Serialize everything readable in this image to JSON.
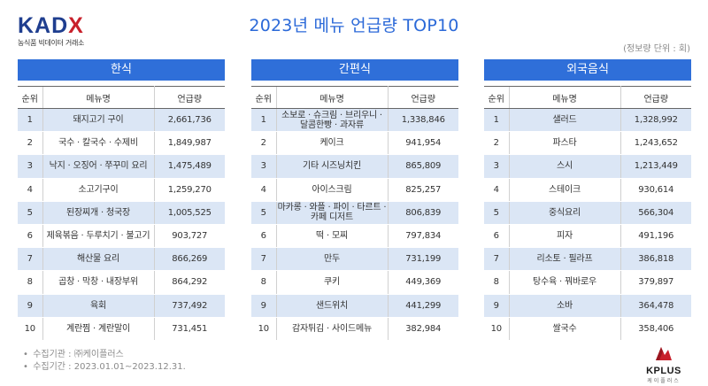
{
  "logo": {
    "brand_left": "KAD",
    "brand_x": "X",
    "subtitle": "농식품 빅데이터 거래소"
  },
  "title": "2023년 메뉴 언급량 TOP10",
  "unit_note": "(정보량 단위 : 회)",
  "columns": {
    "rank": "순위",
    "menu": "메뉴명",
    "count": "언급량"
  },
  "panels": [
    {
      "name": "한식",
      "rows": [
        {
          "rank": "1",
          "menu": "돼지고기 구이",
          "count": "2,661,736"
        },
        {
          "rank": "2",
          "menu": "국수 · 칼국수 · 수제비",
          "count": "1,849,987"
        },
        {
          "rank": "3",
          "menu": "낙지 · 오징어 · 쭈꾸미 요리",
          "count": "1,475,489"
        },
        {
          "rank": "4",
          "menu": "소고기구이",
          "count": "1,259,270"
        },
        {
          "rank": "5",
          "menu": "된장찌개 · 청국장",
          "count": "1,005,525"
        },
        {
          "rank": "6",
          "menu": "제육볶음 · 두루치기 · 불고기",
          "count": "903,727"
        },
        {
          "rank": "7",
          "menu": "해산물 요리",
          "count": "866,269"
        },
        {
          "rank": "8",
          "menu": "곱창 · 막창 · 내장부위",
          "count": "864,292"
        },
        {
          "rank": "9",
          "menu": "육회",
          "count": "737,492"
        },
        {
          "rank": "10",
          "menu": "계란찜 · 계란말이",
          "count": "731,451"
        }
      ]
    },
    {
      "name": "간편식",
      "rows": [
        {
          "rank": "1",
          "menu": "소보로 · 슈크림 · 브리우니 · 달콤한빵 · 과자류",
          "count": "1,338,846"
        },
        {
          "rank": "2",
          "menu": "케이크",
          "count": "941,954"
        },
        {
          "rank": "3",
          "menu": "기타 시즈닝치킨",
          "count": "865,809"
        },
        {
          "rank": "4",
          "menu": "아이스크림",
          "count": "825,257"
        },
        {
          "rank": "5",
          "menu": "마카롱 · 와플 · 파이 · 타르트 · 카페 디저트",
          "count": "806,839"
        },
        {
          "rank": "6",
          "menu": "떡 · 모찌",
          "count": "797,834"
        },
        {
          "rank": "7",
          "menu": "만두",
          "count": "731,199"
        },
        {
          "rank": "8",
          "menu": "쿠키",
          "count": "449,369"
        },
        {
          "rank": "9",
          "menu": "샌드위치",
          "count": "441,299"
        },
        {
          "rank": "10",
          "menu": "감자튀김 · 사이드메뉴",
          "count": "382,984"
        }
      ]
    },
    {
      "name": "외국음식",
      "rows": [
        {
          "rank": "1",
          "menu": "샐러드",
          "count": "1,328,992"
        },
        {
          "rank": "2",
          "menu": "파스타",
          "count": "1,243,652"
        },
        {
          "rank": "3",
          "menu": "스시",
          "count": "1,213,449"
        },
        {
          "rank": "4",
          "menu": "스테이크",
          "count": "930,614"
        },
        {
          "rank": "5",
          "menu": "중식요리",
          "count": "566,304"
        },
        {
          "rank": "6",
          "menu": "피자",
          "count": "491,196"
        },
        {
          "rank": "7",
          "menu": "리소토 · 필라프",
          "count": "386,818"
        },
        {
          "rank": "8",
          "menu": "탕수육 · 꿔바로우",
          "count": "379,897"
        },
        {
          "rank": "9",
          "menu": "소바",
          "count": "364,478"
        },
        {
          "rank": "10",
          "menu": "쌀국수",
          "count": "358,406"
        }
      ]
    }
  ],
  "notes": [
    "수집기관 : ㈜케이플러스",
    "수집기간 : 2023.01.01~2023.12.31."
  ],
  "footer_logo": {
    "word": "KPLUS",
    "sub": "케이플러스"
  },
  "colors": {
    "accent": "#2f6fd9",
    "title": "#2b69d8",
    "row_shade": "#dbe6f5",
    "logo_blue": "#1f3e8f",
    "logo_red": "#c8202b"
  }
}
